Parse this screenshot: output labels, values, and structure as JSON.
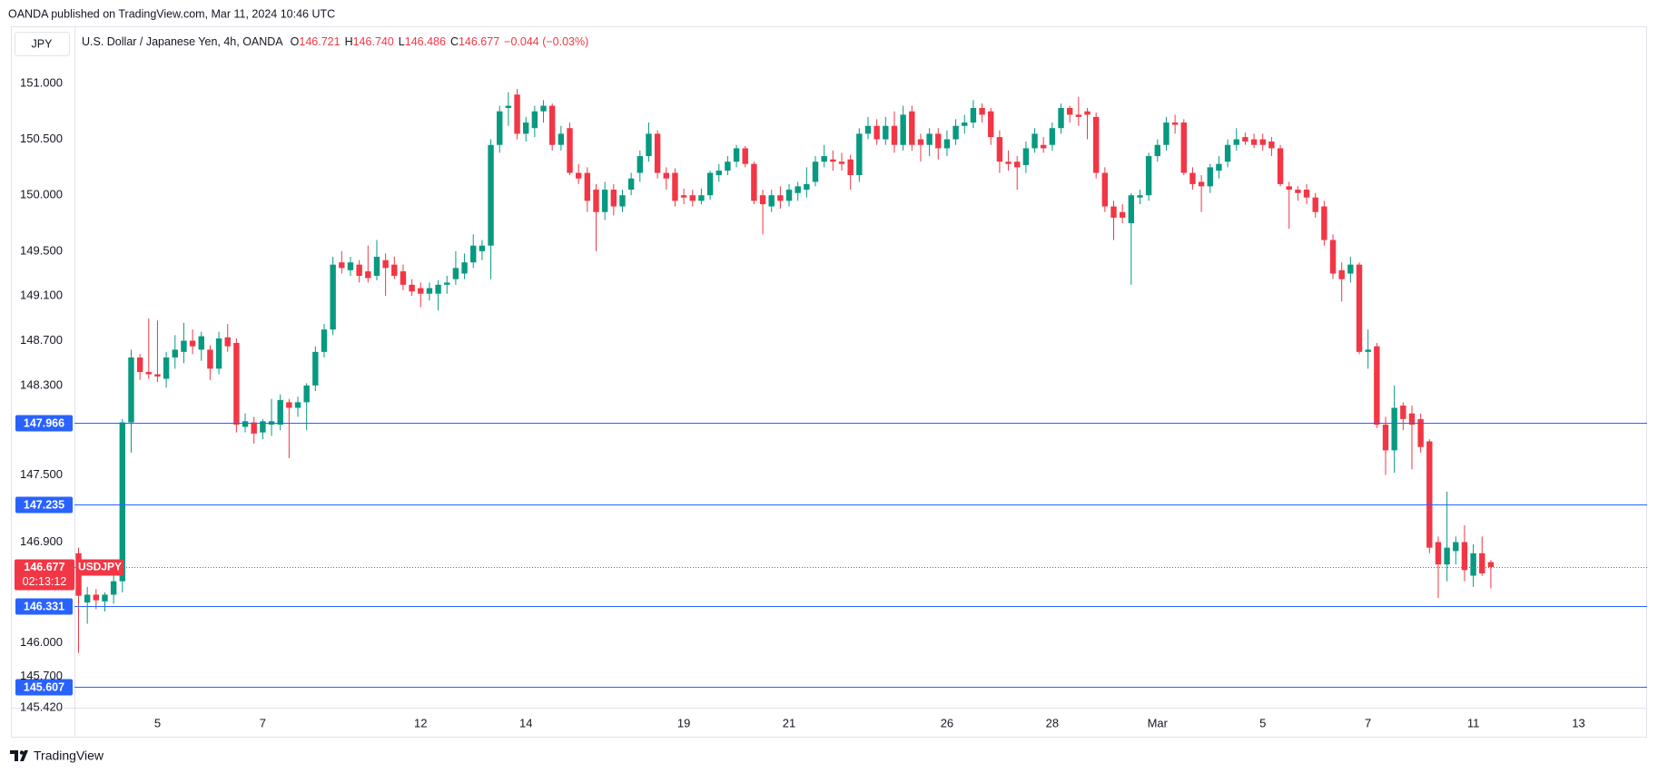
{
  "page": {
    "published": "OANDA published on TradingView.com, Mar 11, 2024 10:46 UTC",
    "currency": "JPY",
    "brand": "TradingView"
  },
  "chart_data": {
    "type": "candlestick",
    "title": "U.S. Dollar / Japanese Yen, 4h, OANDA",
    "ohlc_legend": [
      {
        "key": "O",
        "value": "146.721"
      },
      {
        "key": "H",
        "value": "146.740"
      },
      {
        "key": "L",
        "value": "146.486"
      },
      {
        "key": "C",
        "value": "146.677"
      }
    ],
    "change": "−0.044 (−0.03%)",
    "symbol": "USDJPY",
    "countdown": "02:13:12",
    "up_color": "#089981",
    "down_color": "#f23645",
    "hline_color": "#2962ff",
    "grid": false,
    "ylim": [
      145.42,
      151.51
    ],
    "yticks": [
      {
        "value": 151,
        "label": "151.000"
      },
      {
        "value": 150.5,
        "label": "150.500"
      },
      {
        "value": 150,
        "label": "150.000"
      },
      {
        "value": 149.5,
        "label": "149.500"
      },
      {
        "value": 149.1,
        "label": "149.100"
      },
      {
        "value": 148.7,
        "label": "148.700"
      },
      {
        "value": 148.3,
        "label": "148.300"
      },
      {
        "value": 147.5,
        "label": "147.500"
      },
      {
        "value": 146.9,
        "label": "146.900"
      },
      {
        "value": 146,
        "label": "146.000"
      },
      {
        "value": 145.7,
        "label": "145.700"
      },
      {
        "value": 145.42,
        "label": "145.420"
      }
    ],
    "hlines": [
      147.966,
      147.235,
      146.331,
      145.607
    ],
    "categories": [
      null,
      null,
      null,
      null,
      null,
      null,
      null,
      null,
      null,
      "5",
      null,
      null,
      null,
      null,
      null,
      null,
      null,
      null,
      null,
      null,
      null,
      "7",
      null,
      null,
      null,
      null,
      null,
      null,
      null,
      null,
      null,
      null,
      null,
      null,
      null,
      null,
      null,
      null,
      null,
      "12",
      null,
      null,
      null,
      null,
      null,
      null,
      null,
      null,
      null,
      null,
      null,
      "14",
      null,
      null,
      null,
      null,
      null,
      null,
      null,
      null,
      null,
      null,
      null,
      null,
      null,
      null,
      null,
      null,
      null,
      "19",
      null,
      null,
      null,
      null,
      null,
      null,
      null,
      null,
      null,
      null,
      null,
      "21",
      null,
      null,
      null,
      null,
      null,
      null,
      null,
      null,
      null,
      null,
      null,
      null,
      null,
      null,
      null,
      null,
      null,
      "26",
      null,
      null,
      null,
      null,
      null,
      null,
      null,
      null,
      null,
      null,
      null,
      "28",
      null,
      null,
      null,
      null,
      null,
      null,
      null,
      null,
      null,
      null,
      null,
      "Mar",
      null,
      null,
      null,
      null,
      null,
      null,
      null,
      null,
      null,
      null,
      null,
      "5",
      null,
      null,
      null,
      null,
      null,
      null,
      null,
      null,
      null,
      null,
      null,
      "7",
      null,
      null,
      null,
      null,
      null,
      null,
      null,
      null,
      null,
      null,
      null,
      "11",
      null,
      null,
      null,
      null,
      null,
      null,
      null,
      null,
      null,
      null,
      null,
      "13",
      null,
      null,
      null,
      null
    ],
    "open": [
      146.8,
      146.36,
      146.43,
      146.37,
      146.43,
      146.55,
      147.97,
      148.55,
      148.42,
      148.4,
      148.36,
      148.55,
      148.6,
      148.7,
      148.62,
      148.62,
      148.45,
      148.73,
      148.68,
      147.93,
      147.97,
      147.88,
      147.95,
      147.95,
      148.15,
      148.1,
      148.15,
      148.3,
      148.6,
      148.8,
      149.4,
      149.33,
      149.38,
      149.32,
      149.28,
      149.42,
      149.38,
      149.32,
      149.2,
      149.17,
      149.12,
      149.12,
      149.2,
      149.25,
      149.3,
      149.4,
      149.5,
      149.55,
      150.45,
      150.78,
      150.9,
      150.55,
      150.6,
      150.75,
      150.8,
      150.45,
      150.6,
      150.2,
      150.2,
      150.05,
      149.85,
      150.05,
      149.9,
      150.05,
      150.2,
      150.35,
      150.55,
      150.2,
      150.2,
      150.0,
      150.0,
      149.95,
      150.0,
      150.18,
      150.22,
      150.3,
      150.42,
      150.28,
      150.0,
      149.9,
      150.0,
      149.95,
      150.02,
      150.05,
      150.12,
      150.3,
      150.32,
      150.3,
      150.32,
      150.18,
      150.55,
      150.62,
      150.5,
      150.62,
      150.45,
      150.75,
      150.5,
      150.45,
      150.55,
      150.42,
      150.5,
      150.62,
      150.65,
      150.78,
      150.75,
      150.52,
      150.3,
      150.3,
      150.27,
      150.42,
      150.45,
      150.45,
      150.6,
      150.78,
      150.72,
      150.75,
      150.7,
      150.2,
      149.9,
      149.85,
      149.75,
      149.98,
      150.0,
      150.35,
      150.45,
      150.65,
      150.65,
      150.2,
      150.12,
      150.08,
      150.22,
      150.3,
      150.45,
      150.52,
      150.5,
      150.5,
      150.48,
      150.42,
      150.08,
      150.05,
      150.05,
      149.98,
      149.9,
      149.6,
      149.33,
      149.3,
      149.38,
      148.6,
      148.65,
      147.95,
      147.72,
      148.12,
      148.05,
      148.0,
      147.8,
      146.9,
      146.7,
      146.82,
      146.9,
      146.6,
      146.8,
      146.721,
      null,
      null,
      null,
      null,
      null,
      null,
      null,
      null,
      null,
      null,
      null,
      null,
      null,
      null
    ],
    "high": [
      146.85,
      146.5,
      146.48,
      146.45,
      146.74,
      148.0,
      148.62,
      148.58,
      148.9,
      148.88,
      148.6,
      148.75,
      148.86,
      148.8,
      148.78,
      148.66,
      148.78,
      148.85,
      148.72,
      148.05,
      148.02,
      148.0,
      148.18,
      148.22,
      148.18,
      148.2,
      148.32,
      148.65,
      148.85,
      149.45,
      149.5,
      149.45,
      149.42,
      149.55,
      149.6,
      149.48,
      149.45,
      149.38,
      149.25,
      149.22,
      149.22,
      149.24,
      149.28,
      149.5,
      149.48,
      149.65,
      149.6,
      150.5,
      150.8,
      150.92,
      150.95,
      150.7,
      150.8,
      150.85,
      150.82,
      150.62,
      150.65,
      150.28,
      150.25,
      150.1,
      150.12,
      150.1,
      150.05,
      150.2,
      150.4,
      150.65,
      150.58,
      150.25,
      150.24,
      150.06,
      150.05,
      150.06,
      150.22,
      150.28,
      150.35,
      150.45,
      150.44,
      150.3,
      150.05,
      150.05,
      150.08,
      150.1,
      150.12,
      150.25,
      150.35,
      150.45,
      150.4,
      150.38,
      150.36,
      150.6,
      150.7,
      150.68,
      150.7,
      150.75,
      150.8,
      150.8,
      150.55,
      150.6,
      150.6,
      150.58,
      150.68,
      150.72,
      150.85,
      150.82,
      150.78,
      150.58,
      150.4,
      150.35,
      150.48,
      150.6,
      150.52,
      150.65,
      150.82,
      150.8,
      150.88,
      150.78,
      150.74,
      150.25,
      149.95,
      149.92,
      150.02,
      150.05,
      150.38,
      150.5,
      150.7,
      150.72,
      150.68,
      150.25,
      150.18,
      150.28,
      150.35,
      150.5,
      150.6,
      150.56,
      150.55,
      150.55,
      150.52,
      150.45,
      150.12,
      150.08,
      150.1,
      150.02,
      149.95,
      149.65,
      149.4,
      149.45,
      149.4,
      148.8,
      148.68,
      148.02,
      148.3,
      148.15,
      148.12,
      148.05,
      147.82,
      146.95,
      147.35,
      146.95,
      147.05,
      146.88,
      146.95,
      146.74,
      null,
      null,
      null,
      null,
      null,
      null,
      null,
      null,
      null,
      null,
      null,
      null,
      null,
      null
    ],
    "low": [
      145.91,
      146.17,
      146.3,
      146.28,
      146.35,
      146.45,
      147.7,
      148.35,
      148.36,
      148.33,
      148.28,
      148.45,
      148.5,
      148.58,
      148.52,
      148.35,
      148.4,
      148.6,
      147.88,
      147.88,
      147.78,
      147.82,
      147.85,
      147.9,
      147.65,
      148.02,
      147.9,
      148.25,
      148.55,
      148.75,
      149.3,
      149.28,
      149.22,
      149.22,
      149.24,
      149.1,
      149.25,
      149.15,
      149.1,
      149.0,
      149.06,
      148.97,
      149.12,
      149.2,
      149.25,
      149.35,
      149.42,
      149.25,
      150.38,
      150.62,
      150.5,
      150.48,
      150.52,
      150.65,
      150.4,
      150.4,
      150.18,
      150.1,
      149.85,
      149.5,
      149.78,
      149.82,
      149.85,
      150.0,
      150.12,
      150.3,
      150.15,
      150.05,
      149.9,
      149.92,
      149.9,
      149.92,
      149.96,
      150.12,
      150.18,
      150.25,
      150.25,
      149.92,
      149.65,
      149.85,
      149.88,
      149.9,
      149.95,
      149.98,
      150.08,
      150.25,
      150.22,
      150.22,
      150.05,
      150.12,
      150.5,
      150.45,
      150.45,
      150.38,
      150.4,
      150.4,
      150.3,
      150.35,
      150.32,
      150.35,
      150.45,
      150.55,
      150.6,
      150.65,
      150.45,
      150.2,
      150.22,
      150.05,
      150.2,
      150.38,
      150.38,
      150.4,
      150.55,
      150.65,
      150.62,
      150.5,
      150.15,
      149.85,
      149.6,
      149.75,
      149.2,
      149.92,
      149.95,
      150.3,
      150.4,
      150.55,
      150.18,
      150.05,
      149.85,
      150.02,
      150.15,
      150.25,
      150.4,
      150.45,
      150.42,
      150.4,
      150.35,
      150.08,
      149.7,
      149.95,
      149.92,
      149.8,
      149.55,
      149.25,
      149.05,
      149.22,
      148.58,
      148.45,
      147.92,
      147.5,
      147.52,
      147.9,
      147.55,
      147.7,
      146.8,
      146.4,
      146.55,
      146.7,
      146.55,
      146.5,
      146.6,
      146.486,
      null,
      null,
      null,
      null,
      null,
      null,
      null,
      null,
      null,
      null,
      null,
      null,
      null,
      null
    ],
    "close": [
      146.42,
      146.43,
      146.38,
      146.43,
      146.55,
      147.97,
      148.55,
      148.42,
      148.4,
      148.38,
      148.55,
      148.62,
      148.7,
      148.65,
      148.74,
      148.45,
      148.72,
      148.65,
      147.95,
      147.98,
      147.87,
      147.98,
      147.98,
      148.17,
      148.1,
      148.15,
      148.3,
      148.6,
      148.8,
      149.38,
      149.35,
      149.4,
      149.28,
      149.26,
      149.45,
      149.35,
      149.28,
      149.2,
      149.14,
      149.12,
      149.17,
      149.2,
      149.22,
      149.35,
      149.4,
      149.55,
      149.55,
      150.45,
      150.75,
      150.8,
      150.55,
      150.65,
      150.75,
      150.8,
      150.45,
      150.55,
      150.2,
      150.15,
      149.95,
      149.85,
      150.05,
      149.9,
      150.0,
      150.15,
      150.35,
      150.55,
      150.2,
      150.15,
      149.95,
      149.98,
      149.95,
      150.0,
      150.2,
      150.22,
      150.3,
      150.42,
      150.28,
      149.95,
      149.92,
      150.0,
      149.95,
      150.05,
      150.08,
      150.1,
      150.3,
      150.35,
      150.3,
      150.28,
      150.18,
      150.55,
      150.62,
      150.5,
      150.62,
      150.45,
      150.72,
      150.45,
      150.45,
      150.55,
      150.42,
      150.5,
      150.62,
      150.65,
      150.78,
      150.72,
      150.52,
      150.3,
      150.28,
      150.25,
      150.42,
      150.55,
      150.42,
      150.6,
      150.78,
      150.72,
      150.7,
      150.72,
      150.2,
      149.9,
      149.8,
      149.8,
      150.0,
      150.0,
      150.35,
      150.45,
      150.65,
      150.63,
      150.2,
      150.1,
      150.08,
      150.25,
      150.28,
      150.45,
      150.5,
      150.48,
      150.45,
      150.45,
      150.42,
      150.1,
      150.05,
      150.02,
      149.98,
      149.85,
      149.6,
      149.3,
      149.25,
      149.38,
      148.6,
      148.62,
      147.95,
      147.72,
      148.1,
      148.0,
      147.95,
      147.75,
      146.85,
      146.7,
      146.85,
      146.9,
      146.65,
      146.8,
      146.62,
      146.677,
      null,
      null,
      null,
      null,
      null,
      null,
      null,
      null,
      null,
      null,
      null,
      null,
      null,
      null
    ]
  }
}
